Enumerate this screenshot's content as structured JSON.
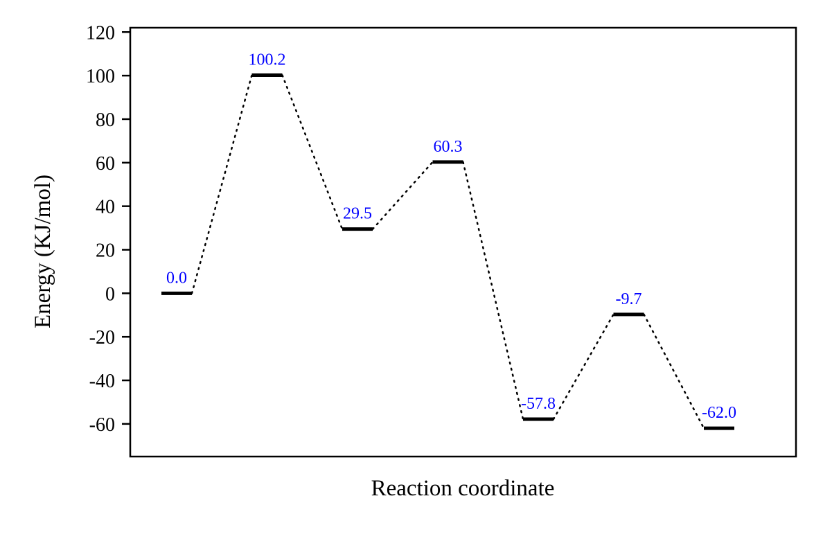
{
  "chart_data": {
    "type": "line",
    "title": "",
    "xlabel": "Reaction coordinate",
    "ylabel": "Energy (KJ/mol)",
    "ylim": [
      -75,
      122
    ],
    "yticks": [
      120,
      100,
      80,
      60,
      40,
      20,
      0,
      -20,
      -40,
      -60
    ],
    "ytick_labels": [
      "120",
      "100",
      "80",
      "60",
      "40",
      "20",
      "0",
      "-20",
      "-40",
      "-60"
    ],
    "grid": false,
    "legend": "none",
    "series": [
      {
        "x": [
          1,
          2,
          3,
          4,
          5,
          6,
          7
        ],
        "values": [
          0.0,
          100.2,
          29.5,
          60.3,
          -57.8,
          -9.7,
          -62.0
        ],
        "labels": [
          "0.0",
          "100.2",
          "29.5",
          "60.3",
          "-57.8",
          "-9.7",
          "-62.0"
        ]
      }
    ],
    "colors": {
      "level": "#000000",
      "connector": "#000000",
      "data_label": "#0000ff"
    }
  }
}
